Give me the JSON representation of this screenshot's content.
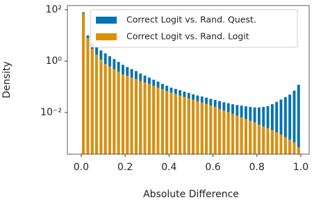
{
  "chart_data": {
    "type": "histogram",
    "xlabel": "Absolute Difference",
    "ylabel": "Density",
    "log_y": true,
    "legend": "upper right",
    "xlim": [
      -0.063,
      1.038
    ],
    "ylim": [
      0.00024,
      145
    ],
    "xticks": [
      {
        "value": 0,
        "label": "0.0"
      },
      0.2,
      0.4,
      0.6,
      0.8,
      {
        "value": 1,
        "label": "1.0"
      }
    ],
    "yticks": [
      {
        "value": 0.01,
        "label": "10⁻²"
      },
      {
        "value": 1,
        "label": "10⁰"
      },
      {
        "value": 100,
        "label": "10²"
      }
    ],
    "bins": [
      0,
      0.02,
      0.04,
      0.06,
      0.08,
      0.1,
      0.12,
      0.14,
      0.16,
      0.18,
      0.2,
      0.22,
      0.24,
      0.26,
      0.28,
      0.3,
      0.32,
      0.34,
      0.36,
      0.38,
      0.4,
      0.42,
      0.44,
      0.46,
      0.48,
      0.5,
      0.52,
      0.54,
      0.56,
      0.58,
      0.6,
      0.62,
      0.64,
      0.66,
      0.68,
      0.7,
      0.72,
      0.74,
      0.76,
      0.78,
      0.8,
      0.82,
      0.84,
      0.86,
      0.88,
      0.9,
      0.92,
      0.94,
      0.96,
      0.98,
      1.0
    ],
    "series": [
      {
        "name": "Correct Logit vs. Rand. Quest.",
        "color": "#0173b2",
        "values": [
          79,
          10,
          5.0,
          3.6,
          2.6,
          2.0,
          1.55,
          1.2,
          0.93,
          0.72,
          0.59,
          0.49,
          0.41,
          0.33,
          0.275,
          0.23,
          0.19,
          0.16,
          0.13,
          0.11,
          0.093,
          0.083,
          0.074,
          0.065,
          0.058,
          0.051,
          0.046,
          0.042,
          0.038,
          0.034,
          0.031,
          0.028,
          0.025,
          0.023,
          0.021,
          0.0195,
          0.0186,
          0.0174,
          0.0166,
          0.0158,
          0.0158,
          0.0166,
          0.0178,
          0.021,
          0.026,
          0.032,
          0.04,
          0.05,
          0.071,
          0.12
        ]
      },
      {
        "name": "Correct Logit vs. Rand. Logit",
        "color": "#de8f05",
        "values": [
          71,
          7.9,
          3.0,
          1.8,
          1.15,
          0.78,
          0.62,
          0.49,
          0.39,
          0.31,
          0.27,
          0.23,
          0.2,
          0.17,
          0.15,
          0.13,
          0.11,
          0.093,
          0.081,
          0.069,
          0.06,
          0.053,
          0.046,
          0.041,
          0.036,
          0.032,
          0.028,
          0.025,
          0.022,
          0.019,
          0.017,
          0.014,
          0.012,
          0.0105,
          0.009,
          0.0076,
          0.0065,
          0.0056,
          0.0048,
          0.0041,
          0.0034,
          0.0029,
          0.0025,
          0.0021,
          0.0017,
          0.0014,
          0.0011,
          0.00089,
          0.0007,
          0.00045
        ]
      }
    ]
  }
}
